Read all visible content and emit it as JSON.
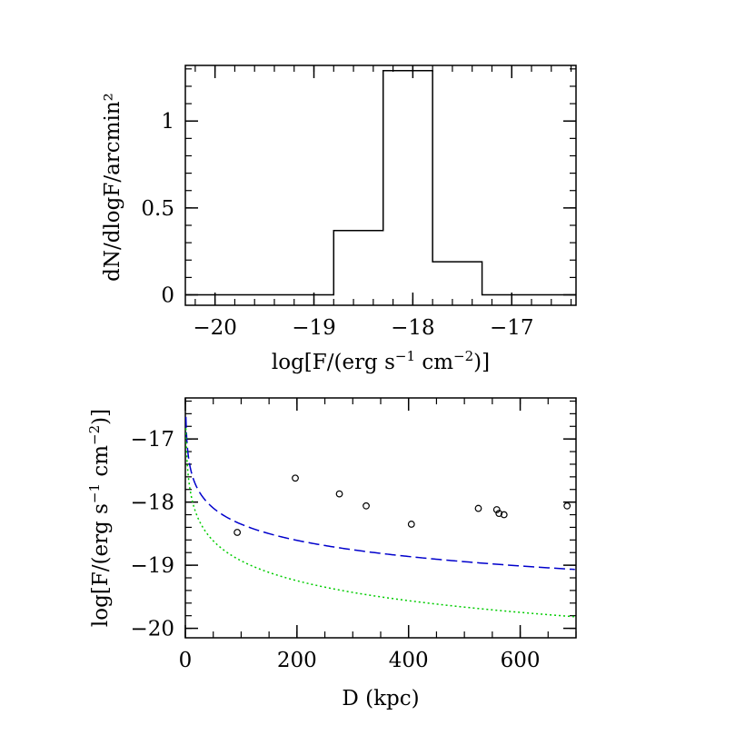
{
  "chart_data": [
    {
      "id": "histogram",
      "type": "histogram",
      "title": "",
      "xlabel_parts": [
        "log[F/(erg s",
        "−1",
        " cm",
        "−2",
        ")]"
      ],
      "ylabel": "dN/dlogF/arcmin²",
      "xlim": [
        -20.3,
        -16.35
      ],
      "ylim": [
        -0.06,
        1.32
      ],
      "xticks": [
        -20,
        -19,
        -18,
        -17
      ],
      "xtick_labels": [
        "−20",
        "−19",
        "−18",
        "−17"
      ],
      "yticks": [
        0,
        0.5,
        1
      ],
      "ytick_labels": [
        "0",
        "0.5",
        "1"
      ],
      "bins": [
        {
          "x0": -20.3,
          "x1": -18.8,
          "value": 0
        },
        {
          "x0": -18.8,
          "x1": -18.3,
          "value": 0.37
        },
        {
          "x0": -18.3,
          "x1": -17.8,
          "value": 1.29
        },
        {
          "x0": -17.8,
          "x1": -17.3,
          "value": 0.19
        },
        {
          "x0": -17.3,
          "x1": -16.35,
          "value": 0
        }
      ],
      "line_color": "#000000"
    },
    {
      "id": "flux-vs-distance",
      "type": "scatter",
      "title": "",
      "xlabel": "D (kpc)",
      "ylabel_parts": [
        "log[F/(erg s",
        "−1",
        " cm",
        "−2",
        ")]"
      ],
      "xlim": [
        0,
        700
      ],
      "ylim": [
        -20.15,
        -16.35
      ],
      "xticks": [
        0,
        200,
        400,
        600
      ],
      "xtick_labels": [
        "0",
        "200",
        "400",
        "600"
      ],
      "yticks": [
        -20,
        -19,
        -18,
        -17
      ],
      "ytick_labels": [
        "−20",
        "−19",
        "−18",
        "−17"
      ],
      "points": [
        {
          "x": 93,
          "y": -18.48
        },
        {
          "x": 197,
          "y": -17.62
        },
        {
          "x": 276,
          "y": -17.87
        },
        {
          "x": 324,
          "y": -18.06
        },
        {
          "x": 405,
          "y": -18.35
        },
        {
          "x": 525,
          "y": -18.1
        },
        {
          "x": 558,
          "y": -18.12
        },
        {
          "x": 562,
          "y": -18.18
        },
        {
          "x": 571,
          "y": -18.2
        },
        {
          "x": 684,
          "y": -18.06
        }
      ],
      "series": [
        {
          "name": "dashed-limit",
          "style": "dashed",
          "color": "#0000cc",
          "model": "power",
          "y_at_100": -18.35,
          "slope": -0.85
        },
        {
          "name": "dotted-limit",
          "style": "dotted",
          "color": "#00cc00",
          "model": "power",
          "y_at_100": -18.93,
          "slope": -1.05
        }
      ]
    }
  ]
}
